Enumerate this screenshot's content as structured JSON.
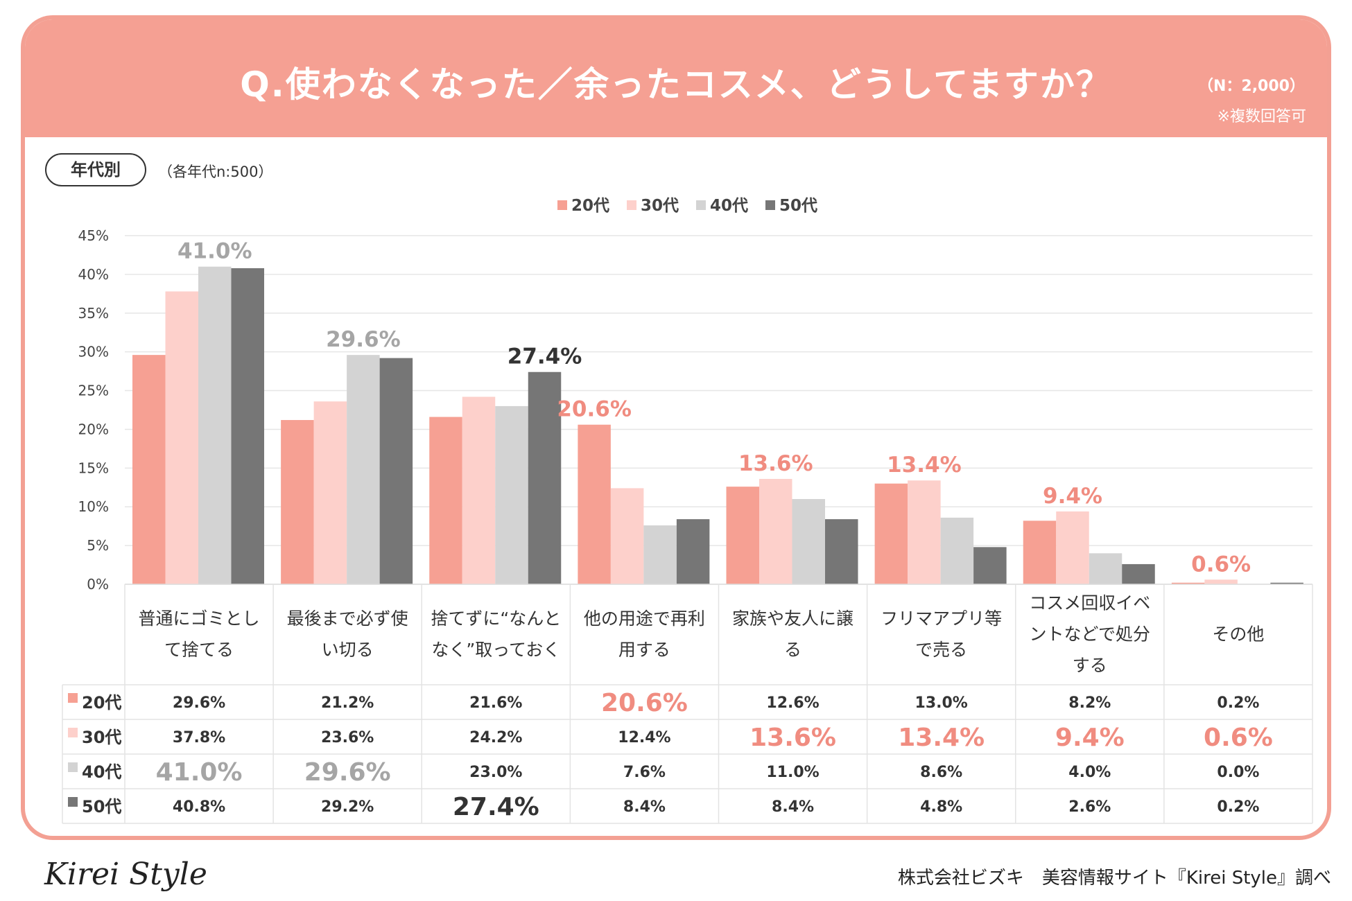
{
  "title": "Q.使わなくなった／余ったコスメ、どうしてますか？",
  "sample_note": "（N：2,000）",
  "multiple_note": "※複数回答可",
  "segment_badge": "年代別",
  "segment_note": "（各年代n:500）",
  "footer": {
    "logo": "Kirei Style",
    "credit": "株式会社ビズキ　美容情報サイト『Kirei Style』調べ"
  },
  "colors": {
    "header": "#f5a093",
    "s20": "#f6a093",
    "s30": "#fdd0cb",
    "s40": "#d3d3d3",
    "s50": "#767676",
    "label_pink": "#f08c80",
    "label_gray": "#a5a5a5",
    "label_dark": "#333333"
  },
  "chart_data": {
    "type": "bar",
    "ylim": [
      0,
      45
    ],
    "yticks": [
      "0%",
      "5%",
      "10%",
      "15%",
      "20%",
      "25%",
      "30%",
      "35%",
      "40%",
      "45%"
    ],
    "categories": [
      [
        "普通にゴミとし",
        "て捨てる"
      ],
      [
        "最後まで必ず使",
        "い切る"
      ],
      [
        "捨てずに“なんと",
        "なく”取っておく"
      ],
      [
        "他の用途で再利",
        "用する"
      ],
      [
        "家族や友人に譲",
        "る"
      ],
      [
        "フリマアプリ等",
        "で売る"
      ],
      [
        "コスメ回収イベ",
        "ントなどで処分",
        "する"
      ],
      [
        "その他"
      ]
    ],
    "series": [
      {
        "name": "20代",
        "values": [
          29.6,
          21.2,
          21.6,
          20.6,
          12.6,
          13.0,
          8.2,
          0.2
        ],
        "labels": [
          "29.6%",
          "21.2%",
          "21.6%",
          "20.6%",
          "12.6%",
          "13.0%",
          "8.2%",
          "0.2%"
        ]
      },
      {
        "name": "30代",
        "values": [
          37.8,
          23.6,
          24.2,
          12.4,
          13.6,
          13.4,
          9.4,
          0.6
        ],
        "labels": [
          "37.8%",
          "23.6%",
          "24.2%",
          "12.4%",
          "13.6%",
          "13.4%",
          "9.4%",
          "0.6%"
        ]
      },
      {
        "name": "40代",
        "values": [
          41.0,
          29.6,
          23.0,
          7.6,
          11.0,
          8.6,
          4.0,
          0.0
        ],
        "labels": [
          "41.0%",
          "29.6%",
          "23.0%",
          "7.6%",
          "11.0%",
          "8.6%",
          "4.0%",
          "0.0%"
        ]
      },
      {
        "name": "50代",
        "values": [
          40.8,
          29.2,
          27.4,
          8.4,
          8.4,
          4.8,
          2.6,
          0.2
        ],
        "labels": [
          "40.8%",
          "29.2%",
          "27.4%",
          "8.4%",
          "8.4%",
          "4.8%",
          "2.6%",
          "0.2%"
        ]
      }
    ],
    "highlights": [
      {
        "category": 0,
        "series": 2,
        "text": "41.0%",
        "color": "gray"
      },
      {
        "category": 1,
        "series": 2,
        "text": "29.6%",
        "color": "gray"
      },
      {
        "category": 2,
        "series": 3,
        "text": "27.4%",
        "color": "dark"
      },
      {
        "category": 3,
        "series": 0,
        "text": "20.6%",
        "color": "pink"
      },
      {
        "category": 4,
        "series": 1,
        "text": "13.6%",
        "color": "pink"
      },
      {
        "category": 5,
        "series": 1,
        "text": "13.4%",
        "color": "pink"
      },
      {
        "category": 6,
        "series": 1,
        "text": "9.4%",
        "color": "pink"
      },
      {
        "category": 7,
        "series": 1,
        "text": "0.6%",
        "color": "pink"
      }
    ]
  }
}
